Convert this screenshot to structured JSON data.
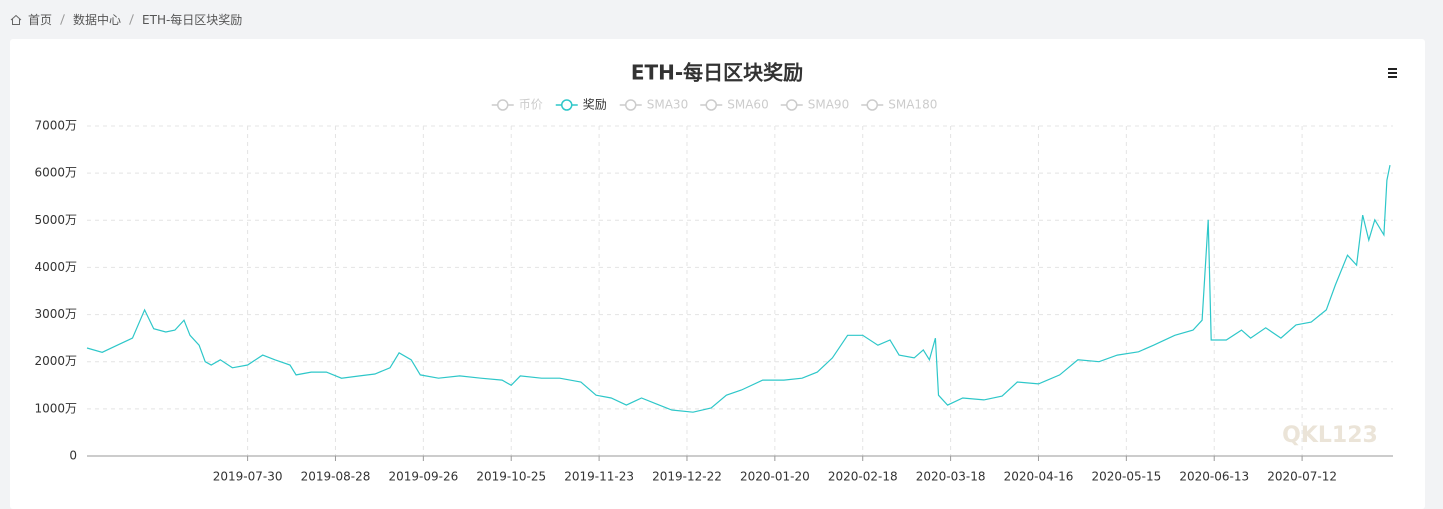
{
  "breadcrumb": [
    "首页",
    "数据中心",
    "ETH-每日区块奖励"
  ],
  "chart_data": {
    "type": "line",
    "title": "ETH-每日区块奖励",
    "watermark": "QKL123",
    "legend": [
      {
        "name": "币价",
        "active": false
      },
      {
        "name": "奖励",
        "active": true
      },
      {
        "name": "SMA30",
        "active": false
      },
      {
        "name": "SMA60",
        "active": false
      },
      {
        "name": "SMA90",
        "active": false
      },
      {
        "name": "SMA180",
        "active": false
      }
    ],
    "grid": true,
    "xlim": [
      "2019-06-07",
      "2020-08-11"
    ],
    "xticks": [
      "2019-07-30",
      "2019-08-28",
      "2019-09-26",
      "2019-10-25",
      "2019-11-23",
      "2019-12-22",
      "2020-01-20",
      "2020-02-18",
      "2020-03-18",
      "2020-04-16",
      "2020-05-15",
      "2020-06-13",
      "2020-07-12"
    ],
    "ylim": [
      0,
      7000
    ],
    "yticks": [
      0,
      {
        "value": 1000,
        "label": "1000万"
      },
      {
        "value": 2000,
        "label": "2000万"
      },
      {
        "value": 3000,
        "label": "3000万"
      },
      {
        "value": 4000,
        "label": "4000万"
      },
      {
        "value": 5000,
        "label": "5000万"
      },
      {
        "value": 6000,
        "label": "6000万"
      },
      {
        "value": 7000,
        "label": "7000万"
      }
    ],
    "x": [
      "2019-06-07",
      "2019-06-12",
      "2019-06-17",
      "2019-06-22",
      "2019-06-26",
      "2019-06-29",
      "2019-07-03",
      "2019-07-06",
      "2019-07-09",
      "2019-07-11",
      "2019-07-14",
      "2019-07-16",
      "2019-07-18",
      "2019-07-21",
      "2019-07-25",
      "2019-07-30",
      "2019-08-04",
      "2019-08-08",
      "2019-08-13",
      "2019-08-15",
      "2019-08-20",
      "2019-08-25",
      "2019-08-30",
      "2019-09-05",
      "2019-09-10",
      "2019-09-15",
      "2019-09-18",
      "2019-09-22",
      "2019-09-25",
      "2019-10-01",
      "2019-10-08",
      "2019-10-15",
      "2019-10-22",
      "2019-10-25",
      "2019-10-28",
      "2019-11-04",
      "2019-11-10",
      "2019-11-17",
      "2019-11-22",
      "2019-11-27",
      "2019-12-02",
      "2019-12-07",
      "2019-12-12",
      "2019-12-17",
      "2019-12-24",
      "2019-12-30",
      "2020-01-04",
      "2020-01-09",
      "2020-01-16",
      "2020-01-23",
      "2020-01-29",
      "2020-02-03",
      "2020-02-08",
      "2020-02-13",
      "2020-02-18",
      "2020-02-23",
      "2020-02-27",
      "2020-03-01",
      "2020-03-06",
      "2020-03-09",
      "2020-03-11",
      "2020-03-13",
      "2020-03-14",
      "2020-03-17",
      "2020-03-22",
      "2020-03-29",
      "2020-04-04",
      "2020-04-09",
      "2020-04-16",
      "2020-04-23",
      "2020-04-29",
      "2020-05-06",
      "2020-05-12",
      "2020-05-19",
      "2020-05-24",
      "2020-05-31",
      "2020-06-06",
      "2020-06-09",
      "2020-06-11",
      "2020-06-12",
      "2020-06-17",
      "2020-06-22",
      "2020-06-25",
      "2020-06-30",
      "2020-07-05",
      "2020-07-10",
      "2020-07-15",
      "2020-07-20",
      "2020-07-23",
      "2020-07-27",
      "2020-07-30",
      "2020-08-01",
      "2020-08-03",
      "2020-08-05",
      "2020-08-08",
      "2020-08-09",
      "2020-08-10"
    ],
    "series": [
      {
        "name": "奖励",
        "color": "#2ec7c9",
        "values": [
          2290,
          2200,
          2350,
          2500,
          3100,
          2700,
          2630,
          2670,
          2880,
          2560,
          2350,
          2000,
          1930,
          2040,
          1870,
          1930,
          2140,
          2040,
          1930,
          1720,
          1780,
          1780,
          1650,
          1700,
          1740,
          1870,
          2190,
          2040,
          1720,
          1650,
          1700,
          1650,
          1610,
          1500,
          1700,
          1650,
          1650,
          1570,
          1290,
          1230,
          1080,
          1230,
          1100,
          975,
          930,
          1020,
          1290,
          1400,
          1610,
          1610,
          1650,
          1780,
          2080,
          2560,
          2560,
          2350,
          2460,
          2140,
          2080,
          2250,
          2040,
          2500,
          1290,
          1080,
          1230,
          1190,
          1270,
          1570,
          1530,
          1720,
          2040,
          2000,
          2140,
          2210,
          2350,
          2560,
          2670,
          2880,
          5010,
          2460,
          2460,
          2670,
          2500,
          2720,
          2500,
          2780,
          2840,
          3100,
          3630,
          4260,
          4050,
          5110,
          4580,
          5010,
          4690,
          5850,
          6170
        ]
      }
    ]
  }
}
